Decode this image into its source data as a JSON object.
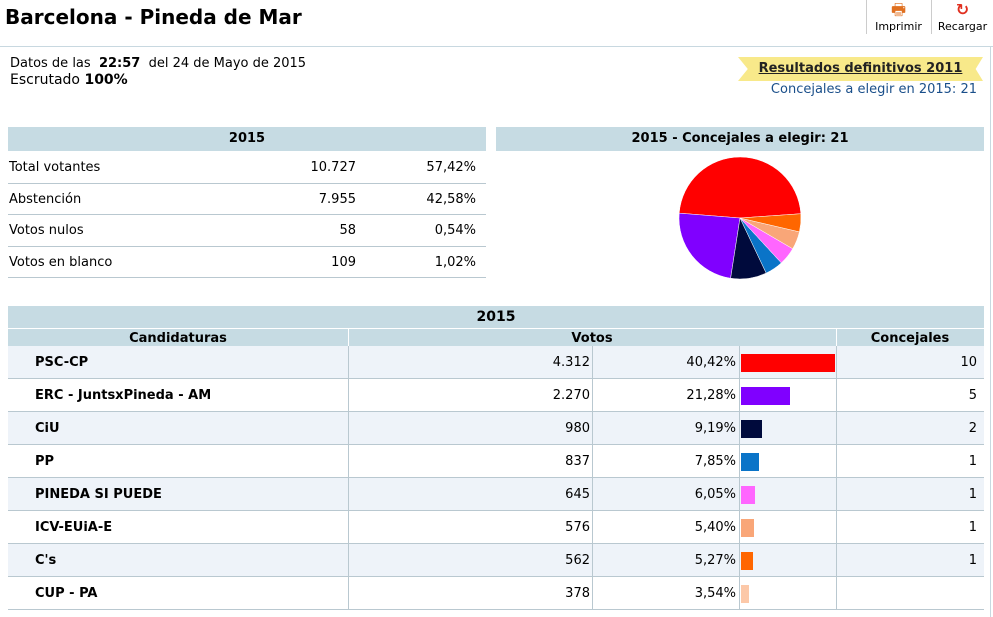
{
  "header": {
    "title": "Barcelona - Pineda de Mar",
    "print_label": "Imprimir",
    "reload_label": "Recargar"
  },
  "info": {
    "datos_prefix": "Datos de las",
    "time": "22:57",
    "date_text": "del 24 de Mayo de 2015",
    "escrutado_label": "Escrutado",
    "escrutado_value": "100%"
  },
  "link": {
    "results_2011": "Resultados definitivos 2011",
    "concejales_note": "Concejales a elegir en 2015: 21"
  },
  "summary": {
    "year": "2015",
    "rows": [
      {
        "label": "Total votantes",
        "value": "10.727",
        "pct": "57,42%"
      },
      {
        "label": "Abstención",
        "value": "7.955",
        "pct": "42,58%"
      },
      {
        "label": "Votos nulos",
        "value": "58",
        "pct": "0,54%"
      },
      {
        "label": "Votos en blanco",
        "value": "109",
        "pct": "1,02%"
      }
    ]
  },
  "pie_section": {
    "title": "2015 - Concejales a elegir: 21"
  },
  "chart_data": {
    "type": "pie",
    "categories": [
      "PSC-CP",
      "ERC - JuntsxPineda - AM",
      "CiU",
      "PP",
      "PINEDA SI PUEDE",
      "ICV-EUiA-E",
      "C's"
    ],
    "values": [
      10,
      5,
      2,
      1,
      1,
      1,
      1
    ],
    "colors": [
      "#ff0000",
      "#8000ff",
      "#000a3c",
      "#0a74c8",
      "#ff66ff",
      "#f9a678",
      "#ff6600"
    ]
  },
  "results": {
    "year": "2015",
    "columns": {
      "candidaturas": "Candidaturas",
      "votos": "Votos",
      "concejales": "Concejales"
    },
    "parties": [
      {
        "name": "PSC-CP",
        "votes": "4.312",
        "pct": "40,42%",
        "pct_value": 40.42,
        "seats": "10",
        "color": "#ff0000"
      },
      {
        "name": "ERC - JuntsxPineda - AM",
        "votes": "2.270",
        "pct": "21,28%",
        "pct_value": 21.28,
        "seats": "5",
        "color": "#8000ff"
      },
      {
        "name": "CiU",
        "votes": "980",
        "pct": "9,19%",
        "pct_value": 9.19,
        "seats": "2",
        "color": "#000a3c"
      },
      {
        "name": "PP",
        "votes": "837",
        "pct": "7,85%",
        "pct_value": 7.85,
        "seats": "1",
        "color": "#0a74c8"
      },
      {
        "name": "PINEDA SI PUEDE",
        "votes": "645",
        "pct": "6,05%",
        "pct_value": 6.05,
        "seats": "1",
        "color": "#ff66ff"
      },
      {
        "name": "ICV-EUiA-E",
        "votes": "576",
        "pct": "5,40%",
        "pct_value": 5.4,
        "seats": "1",
        "color": "#f9a678"
      },
      {
        "name": "C's",
        "votes": "562",
        "pct": "5,27%",
        "pct_value": 5.27,
        "seats": "1",
        "color": "#ff6600"
      },
      {
        "name": "CUP - PA",
        "votes": "378",
        "pct": "3,54%",
        "pct_value": 3.54,
        "seats": "",
        "color": "#fcc8a8"
      }
    ]
  }
}
